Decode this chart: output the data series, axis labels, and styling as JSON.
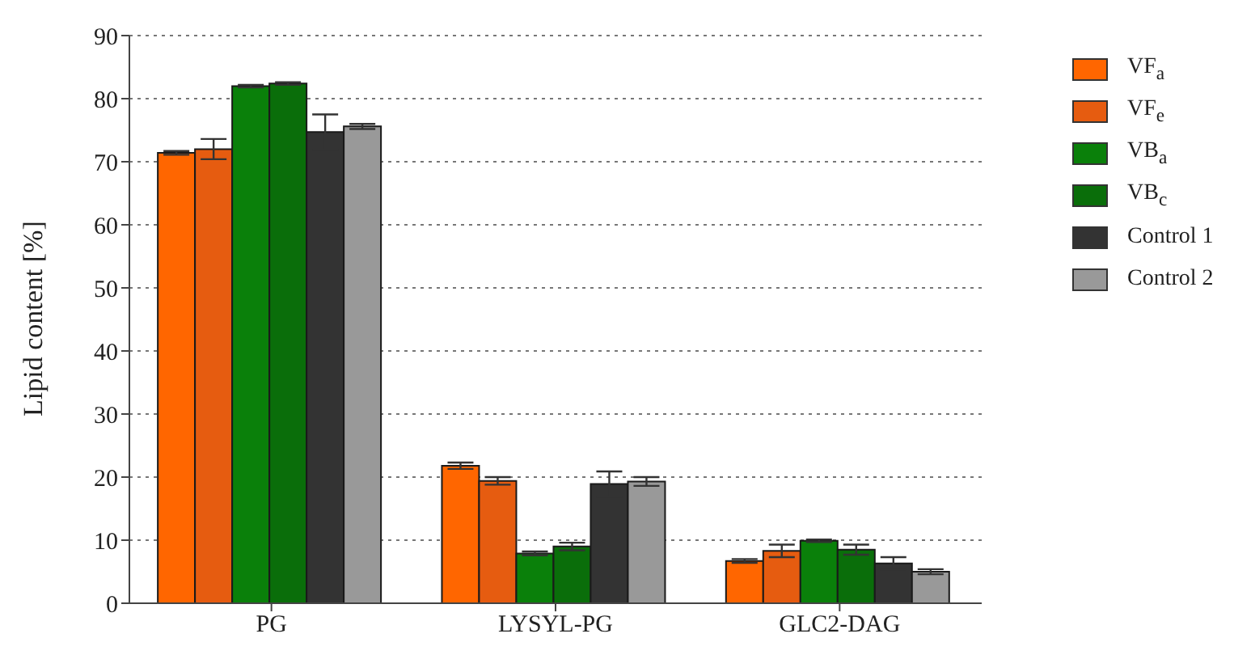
{
  "chart_data": {
    "type": "bar",
    "ylabel": "Lipid content [%]",
    "categories": [
      "PG",
      "LYSYL-PG",
      "GLC2-DAG"
    ],
    "series": [
      {
        "name": "VF$_{a}$",
        "color": "#ff6600",
        "values": [
          71.4,
          21.8,
          6.7
        ],
        "errors": [
          0.3,
          0.5,
          0.3
        ]
      },
      {
        "name": "VF$_{e}$",
        "color": "#e65c10",
        "values": [
          72.0,
          19.4,
          8.3
        ],
        "errors": [
          1.6,
          0.6,
          1.0
        ]
      },
      {
        "name": "VB$_{a}$",
        "color": "#0a800a",
        "values": [
          82.0,
          7.9,
          9.9
        ],
        "errors": [
          0.2,
          0.3,
          0.2
        ]
      },
      {
        "name": "VB$_{c}$",
        "color": "#0a6e0a",
        "values": [
          82.4,
          9.0,
          8.5
        ],
        "errors": [
          0.2,
          0.6,
          0.8
        ]
      },
      {
        "name": "Control 1",
        "color": "#333333",
        "values": [
          74.7,
          18.9,
          6.3
        ],
        "errors": [
          2.8,
          2.0,
          1.0
        ]
      },
      {
        "name": "Control 2",
        "color": "#999999",
        "values": [
          75.6,
          19.3,
          5.0
        ],
        "errors": [
          0.4,
          0.7,
          0.4
        ]
      }
    ],
    "ylim": [
      0,
      90
    ],
    "yticks": [
      0,
      10,
      20,
      30,
      40,
      50,
      60,
      70,
      80,
      90
    ],
    "grid": "y",
    "legend": "right"
  }
}
